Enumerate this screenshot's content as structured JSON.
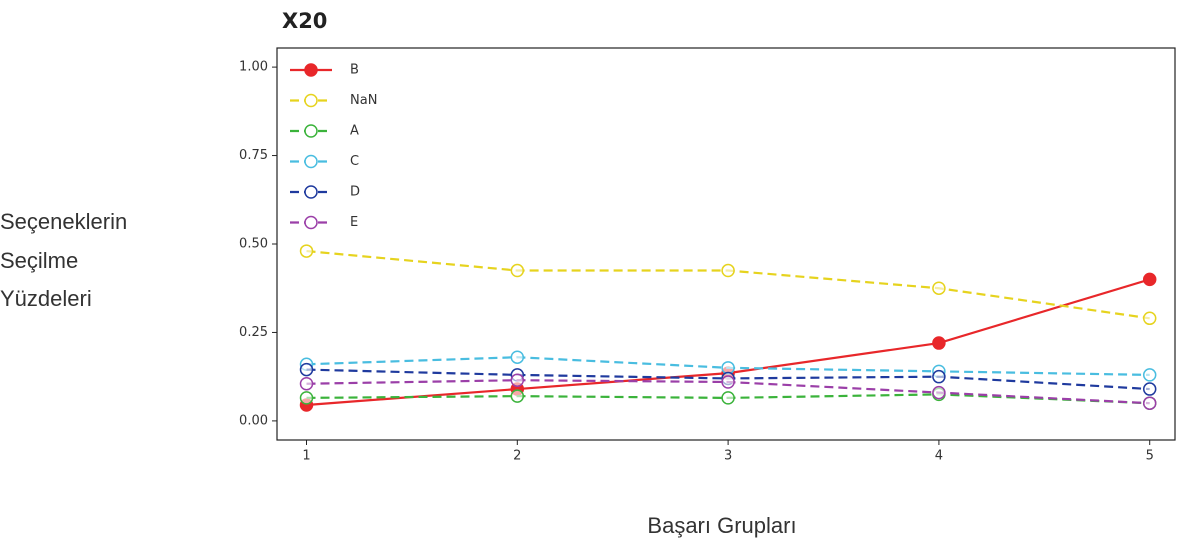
{
  "chart_data": {
    "type": "line",
    "title": "X20",
    "ylabel": [
      "Seçeneklerin",
      "Seçilme",
      "Yüzdeleri"
    ],
    "xlabel": "Başarı Grupları",
    "x": [
      1,
      2,
      3,
      4,
      5
    ],
    "xlim": [
      0.86,
      5.12
    ],
    "xticks": [
      1,
      2,
      3,
      4,
      5
    ],
    "ylim": [
      -0.054,
      1.054
    ],
    "yticks": [
      {
        "value": 0,
        "label": "0.00"
      },
      {
        "value": 0.25,
        "label": "0.25"
      },
      {
        "value": 0.5,
        "label": "0.50"
      },
      {
        "value": 0.75,
        "label": "0.75"
      },
      {
        "value": 1,
        "label": "1.00"
      }
    ],
    "legend": "upper left",
    "series": [
      {
        "name": "B",
        "color": "#e8272a",
        "linestyle": "solid",
        "marker_fill": true,
        "values": [
          0.045,
          0.09,
          0.135,
          0.22,
          0.4
        ]
      },
      {
        "name": "NaN",
        "color": "#e6d31e",
        "linestyle": "dashed",
        "marker_fill": false,
        "values": [
          0.48,
          0.425,
          0.425,
          0.375,
          0.29
        ]
      },
      {
        "name": "A",
        "color": "#3bb33b",
        "linestyle": "dashed",
        "marker_fill": false,
        "values": [
          0.065,
          0.07,
          0.065,
          0.075,
          0.05
        ]
      },
      {
        "name": "C",
        "color": "#49bde0",
        "linestyle": "dashed",
        "marker_fill": false,
        "values": [
          0.16,
          0.18,
          0.15,
          0.14,
          0.13
        ]
      },
      {
        "name": "D",
        "color": "#1f3a9e",
        "linestyle": "dashed",
        "marker_fill": false,
        "values": [
          0.145,
          0.13,
          0.12,
          0.125,
          0.09
        ]
      },
      {
        "name": "E",
        "color": "#9b3fa8",
        "linestyle": "dashed",
        "marker_fill": false,
        "values": [
          0.105,
          0.115,
          0.11,
          0.08,
          0.05
        ]
      }
    ]
  }
}
